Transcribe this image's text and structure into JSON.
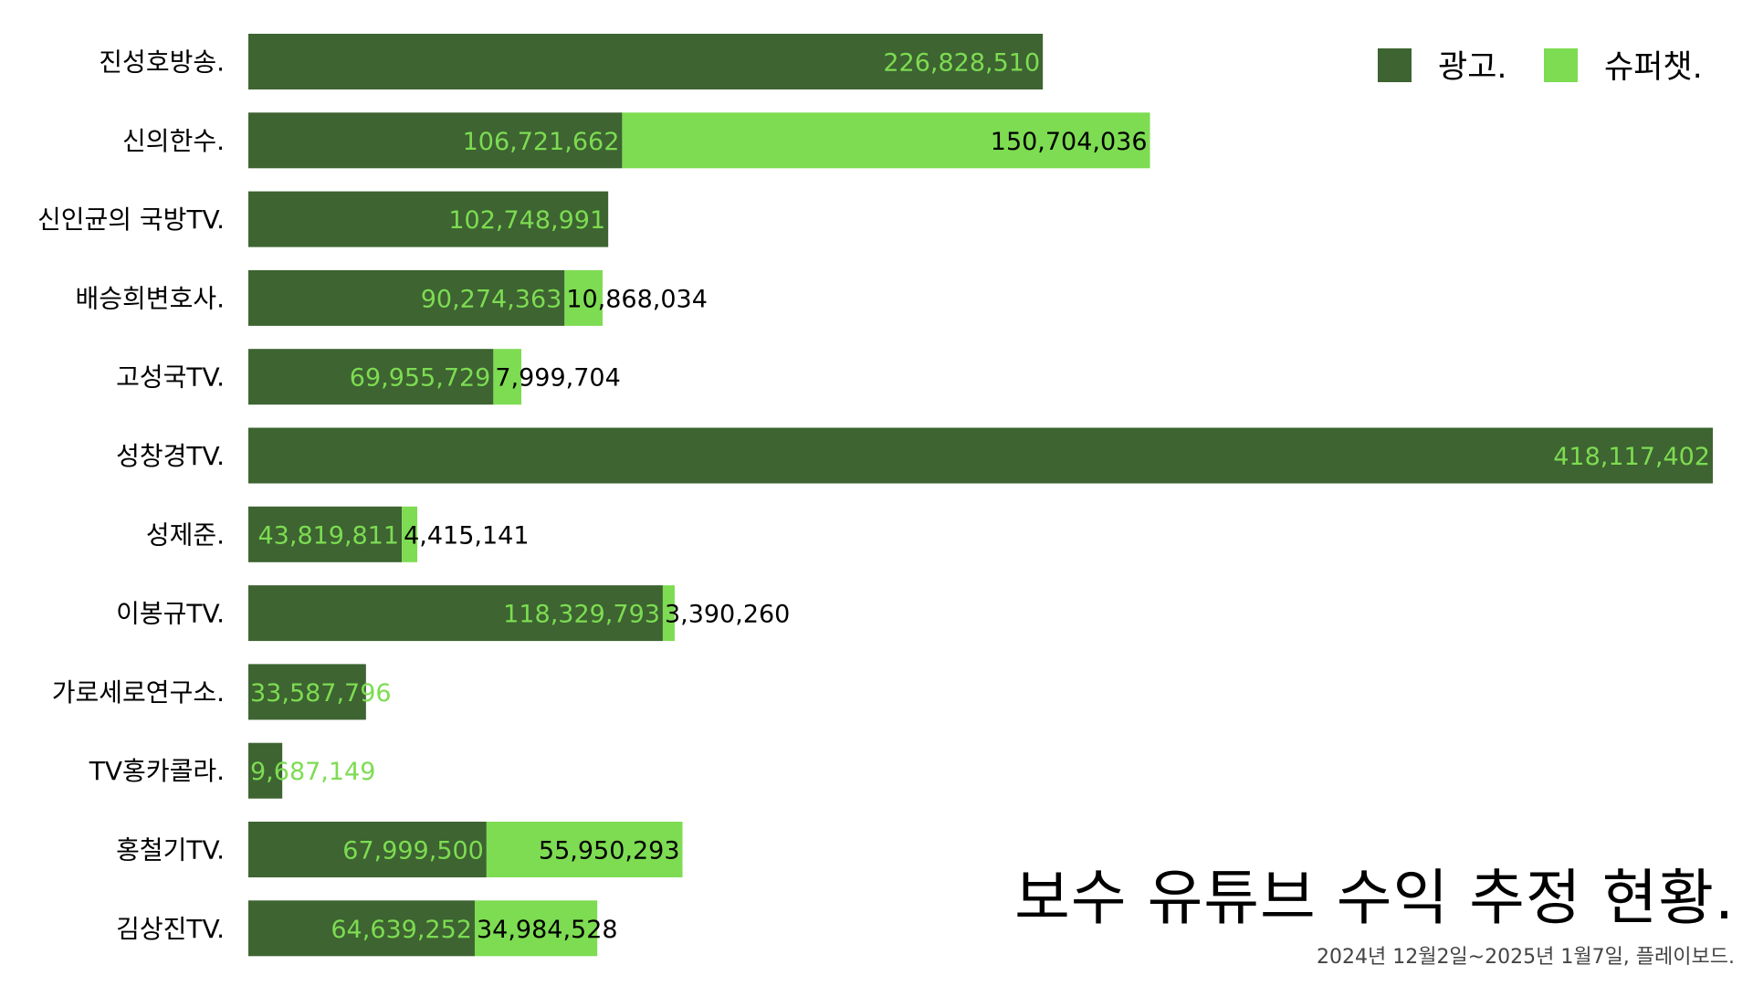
{
  "chart_data": {
    "type": "bar",
    "orientation": "horizontal",
    "stacked": true,
    "title": "보수 유튜브 수익 추정 현황.",
    "subtitle": "2024년 12월2일~2025년 1월7일, 플레이보드.",
    "xlabel": "",
    "ylabel": "",
    "xlim": [
      0,
      418117402
    ],
    "grid": false,
    "legend_position": "top-right",
    "categories": [
      "진성호방송.",
      "신의한수.",
      "신인균의 국방TV.",
      "배승희변호사.",
      "고성국TV.",
      "성창경TV.",
      "성제준.",
      "이봉규TV.",
      "가로세로연구소.",
      "TV홍카콜라.",
      "홍철기TV.",
      "김상진TV."
    ],
    "series": [
      {
        "name": "광고.",
        "color": "#3d6431",
        "values": [
          226828510,
          106721662,
          102748991,
          90274363,
          69955729,
          418117402,
          43819811,
          118329793,
          33587796,
          9687149,
          67999500,
          64639252
        ],
        "labels": [
          "226,828,510",
          "106,721,662",
          "102,748,991",
          "90,274,363",
          "69,955,729",
          "418,117,402",
          "43,819,811",
          "118,329,793",
          "33,587,796",
          "9,687,149",
          "67,999,500",
          "64,639,252"
        ]
      },
      {
        "name": "슈퍼챗.",
        "color": "#7ddc52",
        "values": [
          0,
          150704036,
          0,
          10868034,
          7999704,
          0,
          4415141,
          3390260,
          0,
          0,
          55950293,
          34984528
        ],
        "labels": [
          "",
          "150,704,036",
          "",
          "10,868,034",
          "7,999,704",
          "",
          "4,415,141",
          "3,390,260",
          "",
          "",
          "55,950,293",
          "34,984,528"
        ]
      }
    ]
  }
}
